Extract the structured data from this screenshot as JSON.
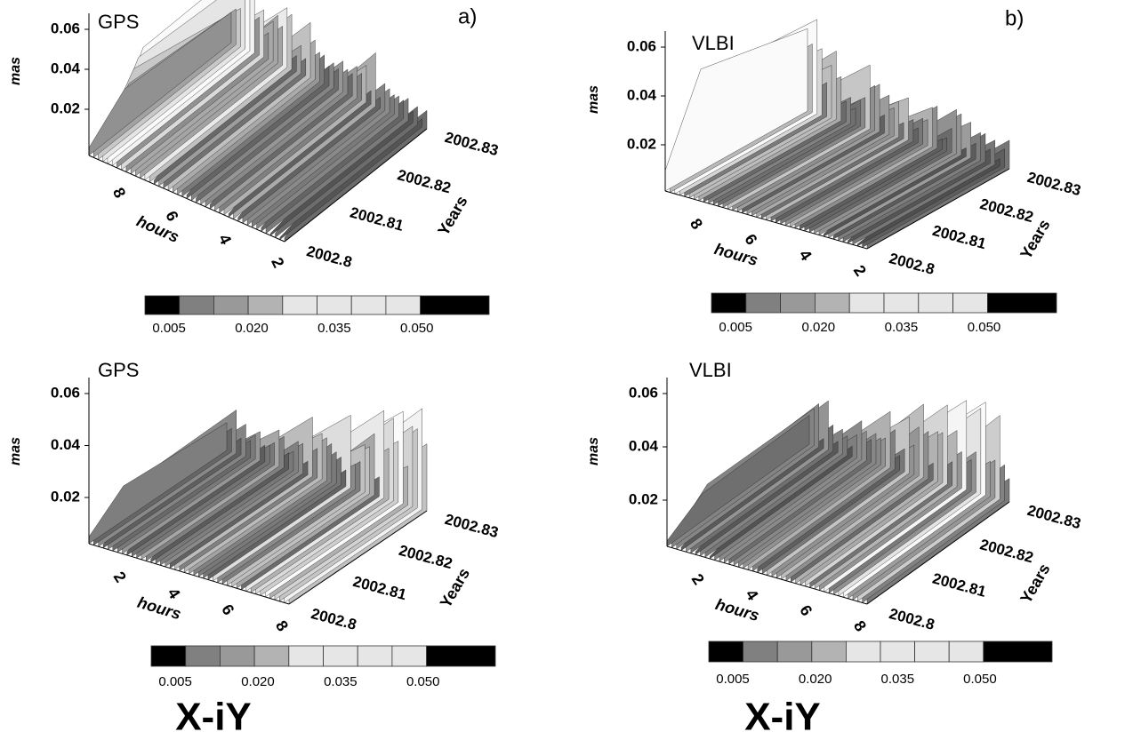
{
  "figure": {
    "panels": [
      {
        "title": "GPS",
        "label": "a)",
        "z_axis_label": "mas",
        "z_ticks": [
          "0.06",
          "0.04",
          "0.02"
        ],
        "x_axis_label": "hours",
        "x_ticks": [
          "8",
          "6",
          "4",
          "2"
        ],
        "y_axis_label": "Years",
        "y_ticks": [
          "2002.8",
          "2002.81",
          "2002.82",
          "2002.83"
        ],
        "colorbar": {
          "colors": [
            "#000000",
            "#808080",
            "#999999",
            "#b3b3b3",
            "#e6e6e6",
            "#e6e6e6",
            "#e6e6e6",
            "#e6e6e6",
            "#000000"
          ],
          "ticks": [
            "0.005",
            "0.020",
            "0.035",
            "0.050"
          ]
        }
      },
      {
        "title": "VLBI",
        "label": "b)",
        "z_axis_label": "mas",
        "z_ticks": [
          "0.06",
          "0.04",
          "0.02"
        ],
        "x_axis_label": "hours",
        "x_ticks": [
          "8",
          "6",
          "4",
          "2"
        ],
        "y_axis_label": "Years",
        "y_ticks": [
          "2002.8",
          "2002.81",
          "2002.82",
          "2002.83"
        ],
        "colorbar": {
          "colors": [
            "#000000",
            "#808080",
            "#999999",
            "#b3b3b3",
            "#e6e6e6",
            "#e6e6e6",
            "#e6e6e6",
            "#e6e6e6",
            "#000000"
          ],
          "ticks": [
            "0.005",
            "0.020",
            "0.035",
            "0.050"
          ]
        }
      },
      {
        "title": "GPS",
        "z_axis_label": "mas",
        "z_ticks": [
          "0.06",
          "0.04",
          "0.02"
        ],
        "x_axis_label": "hours",
        "x_ticks": [
          "2",
          "4",
          "6",
          "8"
        ],
        "y_axis_label": "Years",
        "y_ticks": [
          "2002.8",
          "2002.81",
          "2002.82",
          "2002.83"
        ],
        "colorbar": {
          "colors": [
            "#000000",
            "#808080",
            "#999999",
            "#b3b3b3",
            "#e6e6e6",
            "#e6e6e6",
            "#e6e6e6",
            "#e6e6e6",
            "#000000"
          ],
          "ticks": [
            "0.005",
            "0.020",
            "0.035",
            "0.050"
          ]
        }
      },
      {
        "title": "VLBI",
        "z_axis_label": "mas",
        "z_ticks": [
          "0.06",
          "0.04",
          "0.02"
        ],
        "x_axis_label": "hours",
        "x_ticks": [
          "2",
          "4",
          "6",
          "8"
        ],
        "y_axis_label": "Years",
        "y_ticks": [
          "2002.8",
          "2002.81",
          "2002.82",
          "2002.83"
        ],
        "colorbar": {
          "colors": [
            "#000000",
            "#808080",
            "#999999",
            "#b3b3b3",
            "#e6e6e6",
            "#e6e6e6",
            "#e6e6e6",
            "#e6e6e6",
            "#000000"
          ],
          "ticks": [
            "0.005",
            "0.020",
            "0.035",
            "0.050"
          ]
        }
      }
    ],
    "captions": [
      "X-iY",
      "X-iY"
    ]
  }
}
